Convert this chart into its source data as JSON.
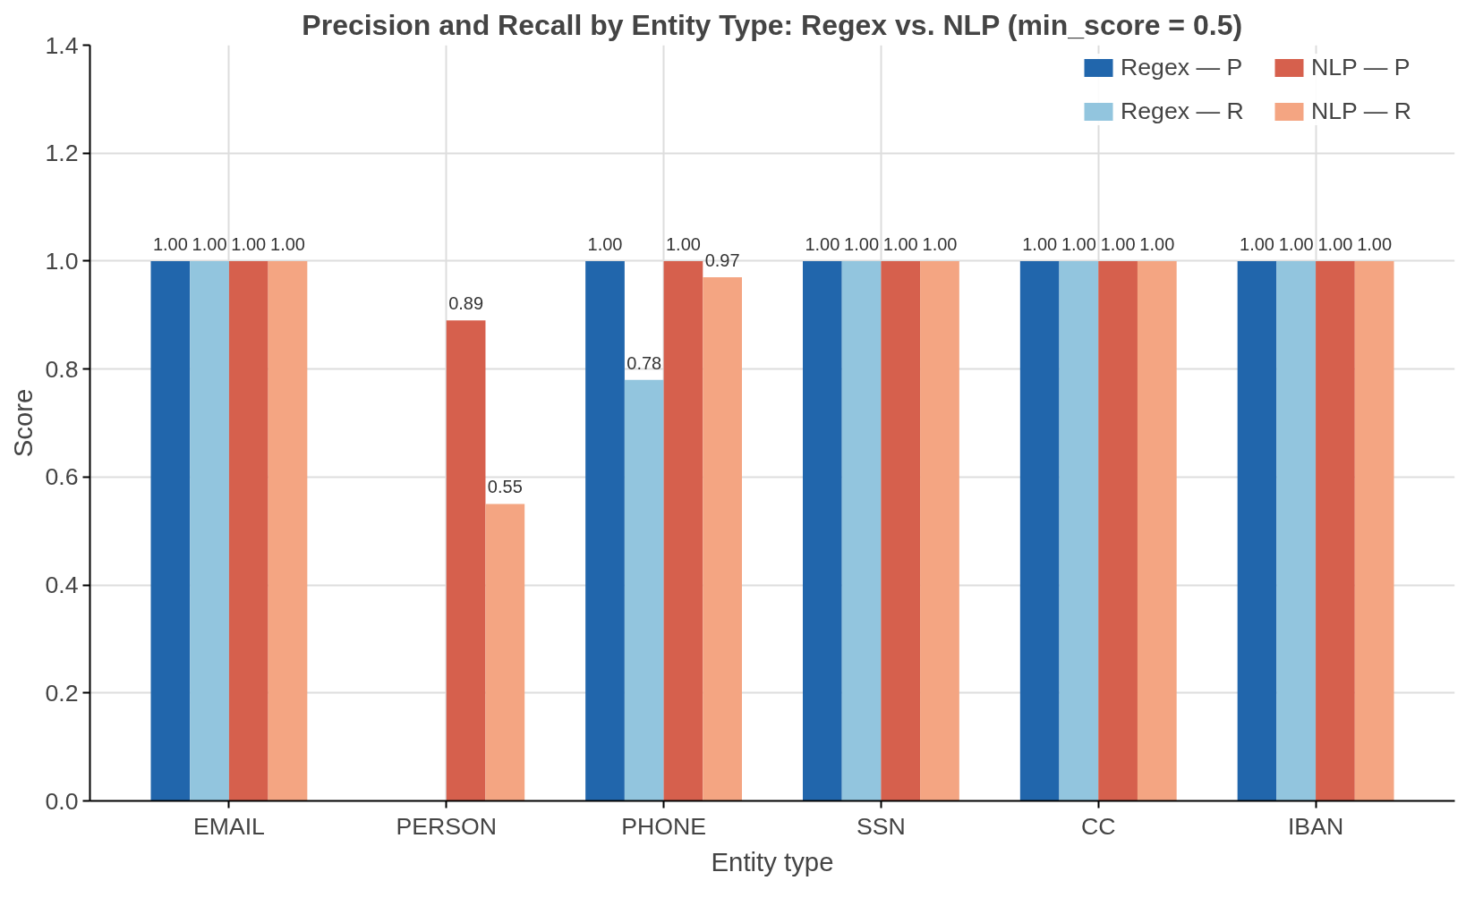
{
  "chart_data": {
    "type": "bar",
    "title": "Precision and Recall by Entity Type: Regex vs. NLP (min_score = 0.5)",
    "xlabel": "Entity type",
    "ylabel": "Score",
    "categories": [
      "EMAIL",
      "PERSON",
      "PHONE",
      "SSN",
      "CC",
      "IBAN"
    ],
    "series": [
      {
        "name": "Regex — P",
        "color": "#2166ac",
        "values": [
          1.0,
          0,
          1.0,
          1.0,
          1.0,
          1.0
        ],
        "value_labels": [
          "1.00",
          null,
          "1.00",
          "1.00",
          "1.00",
          "1.00"
        ]
      },
      {
        "name": "Regex — R",
        "color": "#92c5de",
        "values": [
          1.0,
          0,
          0.78,
          1.0,
          1.0,
          1.0
        ],
        "value_labels": [
          "1.00",
          null,
          "0.78",
          "1.00",
          "1.00",
          "1.00"
        ]
      },
      {
        "name": "NLP — P",
        "color": "#d6604d",
        "values": [
          1.0,
          0.89,
          1.0,
          1.0,
          1.0,
          1.0
        ],
        "value_labels": [
          "1.00",
          "0.89",
          "1.00",
          "1.00",
          "1.00",
          "1.00"
        ]
      },
      {
        "name": "NLP — R",
        "color": "#f4a582",
        "values": [
          1.0,
          0.55,
          0.97,
          1.0,
          1.0,
          1.0
        ],
        "value_labels": [
          "1.00",
          "0.55",
          "0.97",
          "1.00",
          "1.00",
          "1.00"
        ]
      }
    ],
    "ylim": [
      0,
      1.4
    ],
    "yticks": [
      {
        "value": 0,
        "label": "0.0"
      },
      {
        "value": 0.2,
        "label": "0.2"
      },
      {
        "value": 0.4,
        "label": "0.4"
      },
      {
        "value": 0.6,
        "label": "0.6"
      },
      {
        "value": 0.8,
        "label": "0.8"
      },
      {
        "value": 1.0,
        "label": "1.0"
      },
      {
        "value": 1.2,
        "label": "1.2"
      },
      {
        "value": 1.4,
        "label": "1.4"
      }
    ],
    "grid": true,
    "legend": "top right"
  }
}
